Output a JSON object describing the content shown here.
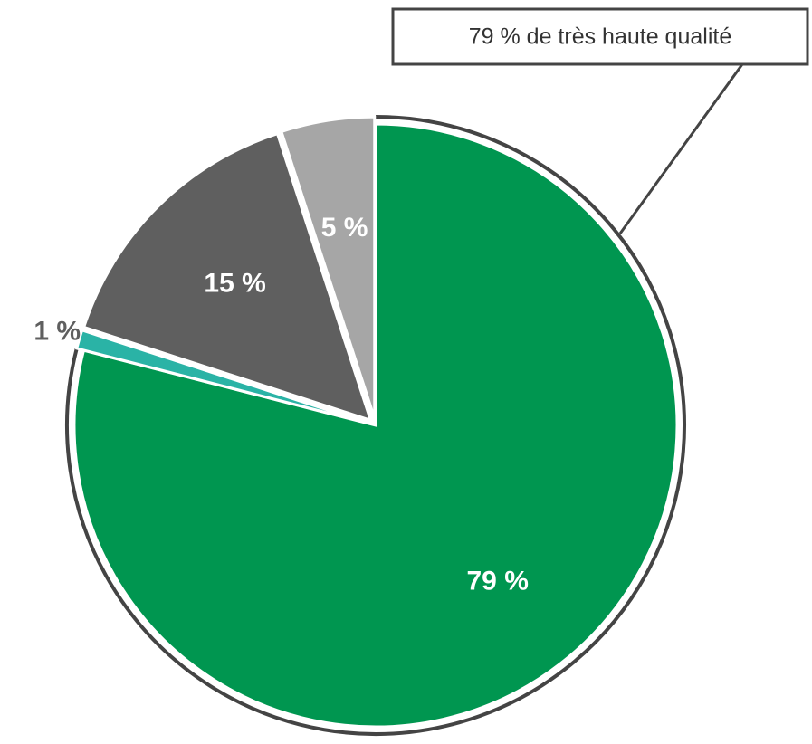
{
  "chart_data": {
    "type": "pie",
    "annotation": "79 % de très haute qualité",
    "categories": [
      null,
      null,
      null,
      null
    ],
    "values": [
      79,
      1,
      15,
      5
    ],
    "value_labels": [
      "79 %",
      "1 %",
      "15 %",
      "5 %"
    ],
    "colors": [
      "#009650",
      "#2ab3a6",
      "#5f5f5f",
      "#a6a6a6"
    ]
  }
}
